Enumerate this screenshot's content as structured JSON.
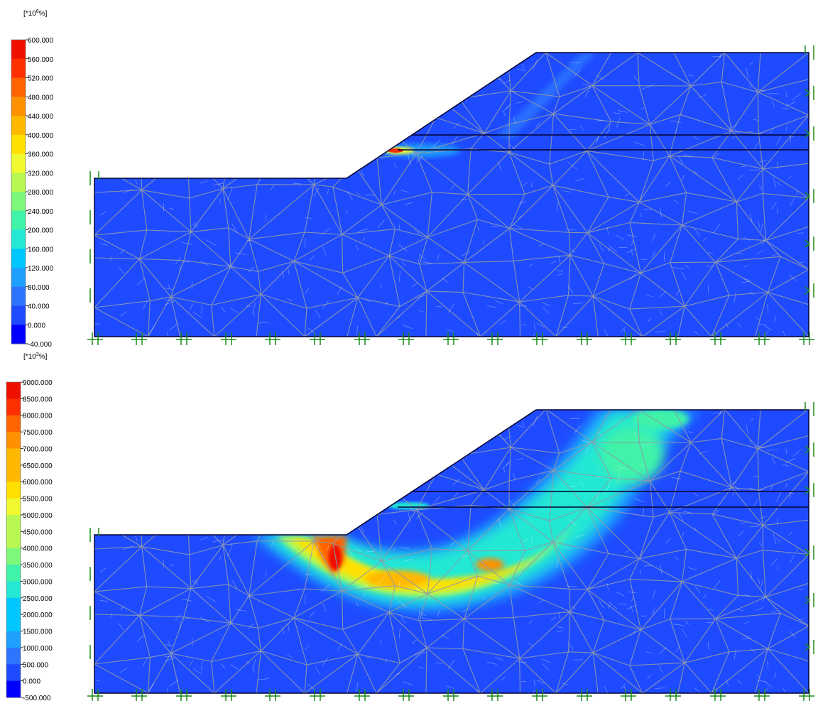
{
  "panels": [
    {
      "id": "top",
      "legend": {
        "unit_prefix": "[*10",
        "unit_exp": "6",
        "unit_suffix": "%]",
        "labels": [
          "600.000",
          "560.000",
          "520.000",
          "480.000",
          "440.000",
          "400.000",
          "360.000",
          "320.000",
          "280.000",
          "240.000",
          "200.000",
          "160.000",
          "120.000",
          "80.000",
          "40.000",
          "0.000",
          "-40.000"
        ]
      }
    },
    {
      "id": "bottom",
      "legend": {
        "unit_prefix": "[*10",
        "unit_exp": "3",
        "unit_suffix": "%]",
        "labels": [
          "9000.000",
          "8500.000",
          "8000.000",
          "7500.000",
          "7000.000",
          "6500.000",
          "6000.000",
          "5500.000",
          "5000.000",
          "4500.000",
          "4000.000",
          "3500.000",
          "3000.000",
          "2500.000",
          "2000.000",
          "1500.000",
          "1000.000",
          "500.000",
          "0.000",
          "-500.000"
        ]
      }
    }
  ],
  "colors": {
    "scale": [
      "#0000ff",
      "#1e4bff",
      "#2f74ff",
      "#1ea0ff",
      "#00c8ff",
      "#24e8d4",
      "#3ff3a8",
      "#7ef87a",
      "#b8f850",
      "#f0f830",
      "#ffe000",
      "#ffb800",
      "#ff9000",
      "#ff6400",
      "#ff3000",
      "#f01000"
    ],
    "field": "#1e4bff",
    "mesh": "#8f9aa8",
    "boundary": "#000033",
    "support": "#1a8a1a"
  }
}
